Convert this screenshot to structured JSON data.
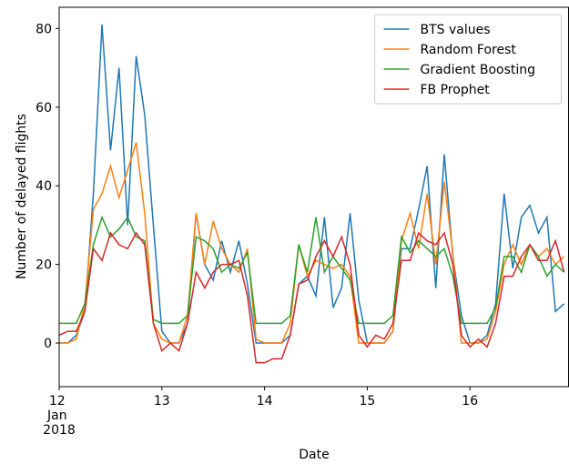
{
  "chart_data": {
    "type": "line",
    "xlabel": "Date",
    "ylabel": "Number of delayed flights",
    "x": [
      12,
      12.083,
      12.167,
      12.25,
      12.333,
      12.417,
      12.5,
      12.583,
      12.667,
      12.75,
      12.833,
      12.917,
      13,
      13.083,
      13.167,
      13.25,
      13.333,
      13.417,
      13.5,
      13.583,
      13.667,
      13.75,
      13.833,
      13.917,
      14,
      14.083,
      14.167,
      14.25,
      14.333,
      14.417,
      14.5,
      14.583,
      14.667,
      14.75,
      14.833,
      14.917,
      15,
      15.083,
      15.167,
      15.25,
      15.333,
      15.417,
      15.5,
      15.583,
      15.667,
      15.75,
      15.833,
      15.917,
      16,
      16.083,
      16.167,
      16.25,
      16.333,
      16.417,
      16.5,
      16.583,
      16.667,
      16.75,
      16.833,
      16.917
    ],
    "series": [
      {
        "name": "BTS values",
        "color": "#1f77b4",
        "values": [
          0,
          0,
          2,
          8,
          38,
          81,
          49,
          70,
          30,
          73,
          58,
          30,
          3,
          0,
          0,
          5,
          33,
          20,
          16,
          26,
          18,
          26,
          15,
          0,
          0,
          0,
          0,
          2,
          15,
          17,
          12,
          32,
          9,
          14,
          33,
          11,
          0,
          0,
          0,
          3,
          24,
          24,
          34,
          45,
          14,
          48,
          22,
          7,
          0,
          0,
          2,
          10,
          38,
          19,
          32,
          35,
          28,
          32,
          8,
          10
        ]
      },
      {
        "name": "Random Forest",
        "color": "#ff7f0e",
        "values": [
          0,
          0,
          1,
          10,
          34,
          38,
          45,
          37,
          44,
          51,
          33,
          5,
          1,
          0,
          0,
          7,
          33,
          20,
          31,
          24,
          20,
          18,
          24,
          1,
          0,
          0,
          0,
          5,
          25,
          17,
          21,
          20,
          19,
          20,
          17,
          0,
          0,
          0,
          0,
          3,
          26,
          33,
          24,
          38,
          20,
          41,
          23,
          0,
          0,
          0,
          1,
          8,
          20,
          25,
          20,
          25,
          22,
          24,
          20,
          22
        ]
      },
      {
        "name": "Gradient Boosting",
        "color": "#2ca02c",
        "values": [
          5,
          5,
          5,
          10,
          25,
          32,
          27,
          29,
          32,
          27,
          26,
          6,
          5,
          5,
          5,
          7,
          27,
          26,
          24,
          18,
          20,
          19,
          23,
          5,
          5,
          5,
          5,
          7,
          25,
          18,
          32,
          18,
          22,
          19,
          16,
          5,
          5,
          5,
          5,
          7,
          27,
          23,
          26,
          24,
          22,
          24,
          17,
          5,
          5,
          5,
          5,
          9,
          22,
          22,
          18,
          25,
          22,
          17,
          20,
          18
        ]
      },
      {
        "name": "FB Prophet",
        "color": "#d62728",
        "values": [
          2,
          3,
          3,
          8,
          24,
          21,
          28,
          25,
          24,
          28,
          25,
          5,
          -2,
          0,
          -2,
          5,
          18,
          14,
          18,
          20,
          20,
          21,
          12,
          -5,
          -5,
          -4,
          -4,
          2,
          15,
          16,
          22,
          26,
          22,
          27,
          20,
          2,
          -1,
          2,
          1,
          5,
          21,
          21,
          28,
          26,
          25,
          28,
          20,
          2,
          -1,
          1,
          -1,
          5,
          17,
          17,
          22,
          25,
          21,
          21,
          26,
          18
        ]
      }
    ],
    "xlim": [
      12,
      16.96
    ],
    "ylim": [
      -11.1,
      85.4
    ],
    "xticks": [
      {
        "value": 12,
        "label": "12 Jan 2018"
      },
      13,
      14,
      15,
      16
    ],
    "yticks": [
      0,
      20,
      40,
      60,
      80
    ],
    "legend": "upper right"
  }
}
